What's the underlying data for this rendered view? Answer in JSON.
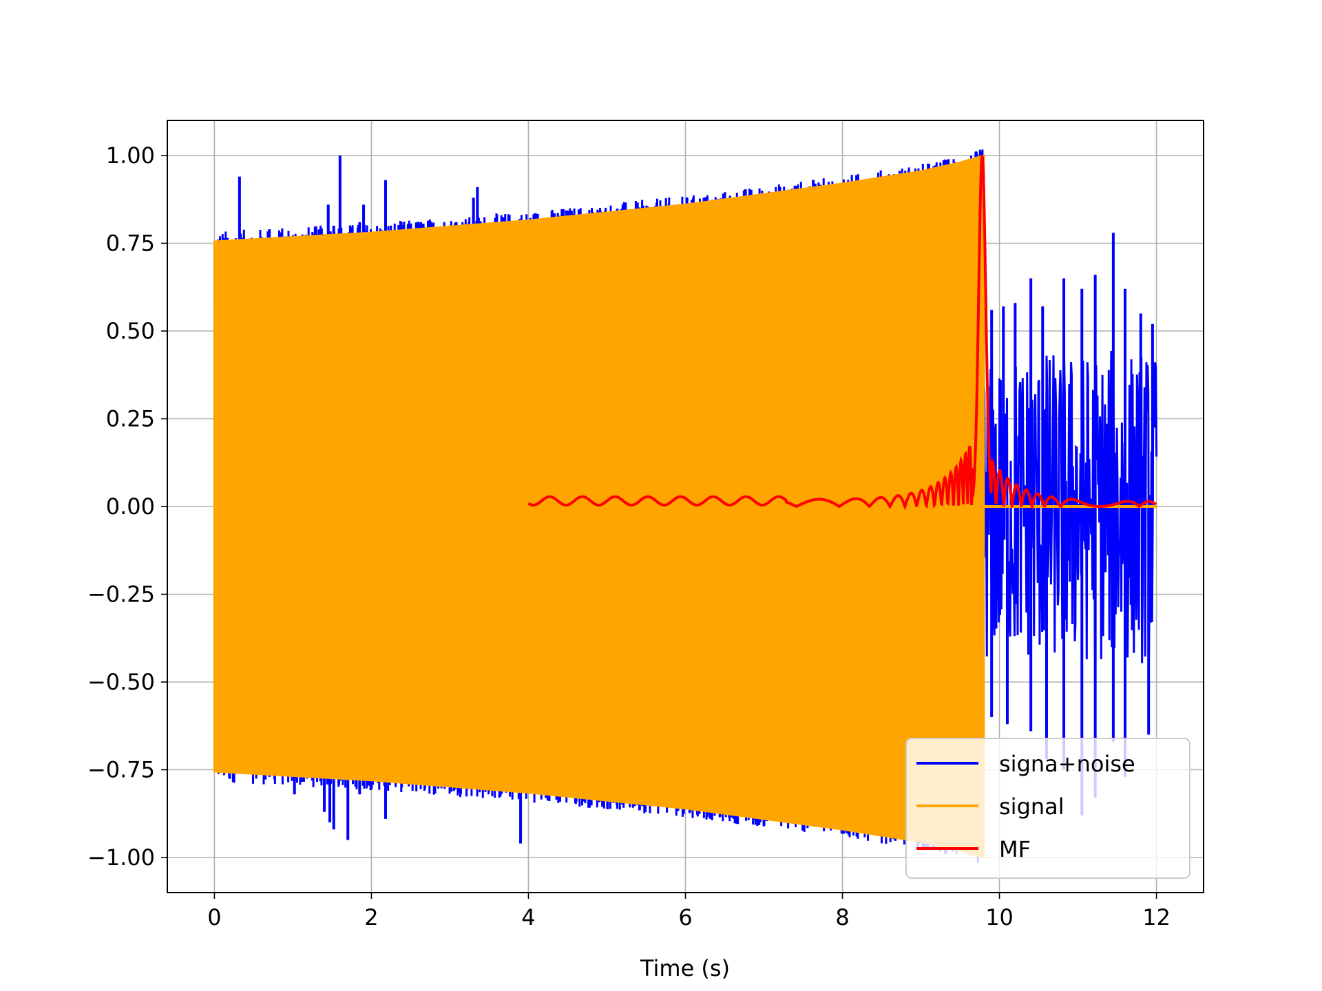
{
  "chart_data": {
    "type": "line",
    "title": "",
    "xlabel": "Time (s)",
    "ylabel": "",
    "xlim": [
      -0.6,
      12.6
    ],
    "ylim": [
      -1.1,
      1.1
    ],
    "grid": true,
    "legend_position": "lower right",
    "x_ticks": [
      0,
      2,
      4,
      6,
      8,
      10,
      12
    ],
    "x_tick_labels": [
      "0",
      "2",
      "4",
      "6",
      "8",
      "10",
      "12"
    ],
    "y_ticks": [
      1.0,
      0.75,
      0.5,
      0.25,
      0.0,
      -0.25,
      -0.5,
      -0.75,
      -1.0
    ],
    "y_tick_labels": [
      "1.00",
      "0.75",
      "0.50",
      "0.25",
      "0.00",
      "−0.25",
      "−0.50",
      "−0.75",
      "−1.00"
    ],
    "series": [
      {
        "name": "signa+noise",
        "color": "#0000ff",
        "kind": "noisy chirp: chirp amplitude until 9.8 s, noise to 12 s",
        "spikes": [
          [
            0.32,
            0.94
          ],
          [
            0.7,
            0.79
          ],
          [
            0.95,
            0.77
          ],
          [
            1.45,
            0.86
          ],
          [
            1.52,
            0.8
          ],
          [
            1.6,
            1.0
          ],
          [
            1.85,
            0.81
          ],
          [
            1.9,
            0.86
          ],
          [
            2.18,
            0.93
          ],
          [
            2.6,
            0.81
          ],
          [
            3.08,
            0.81
          ],
          [
            3.3,
            0.88
          ],
          [
            3.35,
            0.91
          ],
          [
            0.7,
            -0.77
          ],
          [
            1.02,
            -0.82
          ],
          [
            1.4,
            -0.87
          ],
          [
            1.47,
            -0.9
          ],
          [
            1.52,
            -0.92
          ],
          [
            1.7,
            -0.95
          ],
          [
            1.85,
            -0.82
          ],
          [
            2.18,
            -0.89
          ],
          [
            3.9,
            -0.96
          ],
          [
            4.7,
            -0.84
          ]
        ],
        "tail_x_range": [
          9.8,
          12.0
        ],
        "tail_peaks": [
          [
            9.9,
            0.56
          ],
          [
            10.05,
            0.57
          ],
          [
            10.2,
            0.58
          ],
          [
            10.4,
            0.65
          ],
          [
            10.55,
            0.57
          ],
          [
            10.82,
            0.65
          ],
          [
            11.05,
            0.62
          ],
          [
            11.22,
            0.66
          ],
          [
            11.45,
            0.78
          ],
          [
            11.6,
            0.62
          ],
          [
            11.8,
            0.55
          ],
          [
            11.95,
            0.52
          ],
          [
            9.9,
            -0.6
          ],
          [
            10.1,
            -0.62
          ],
          [
            10.4,
            -0.64
          ],
          [
            10.6,
            -0.72
          ],
          [
            10.82,
            -0.75
          ],
          [
            11.05,
            -0.88
          ],
          [
            11.22,
            -0.83
          ],
          [
            11.45,
            -0.67
          ],
          [
            11.6,
            -0.77
          ],
          [
            11.9,
            -0.65
          ]
        ]
      },
      {
        "name": "signal",
        "color": "#ffa500",
        "kind": "chirp with growing amplitude until 9.8 s, then zero to 12 s",
        "envelope_x": [
          0.0,
          2.0,
          4.0,
          6.0,
          8.0,
          9.0,
          9.5,
          9.8
        ],
        "envelope_y": [
          0.755,
          0.78,
          0.815,
          0.86,
          0.92,
          0.955,
          0.98,
          1.0
        ],
        "zero_after": 9.8,
        "x_end": 12.0
      },
      {
        "name": "MF",
        "color": "#ff0000",
        "kind": "matched-filter output, narrow peak at 9.78 s",
        "x_range": [
          4.0,
          12.0
        ],
        "peak_x": 9.78,
        "peak_y": 1.0
      }
    ]
  }
}
